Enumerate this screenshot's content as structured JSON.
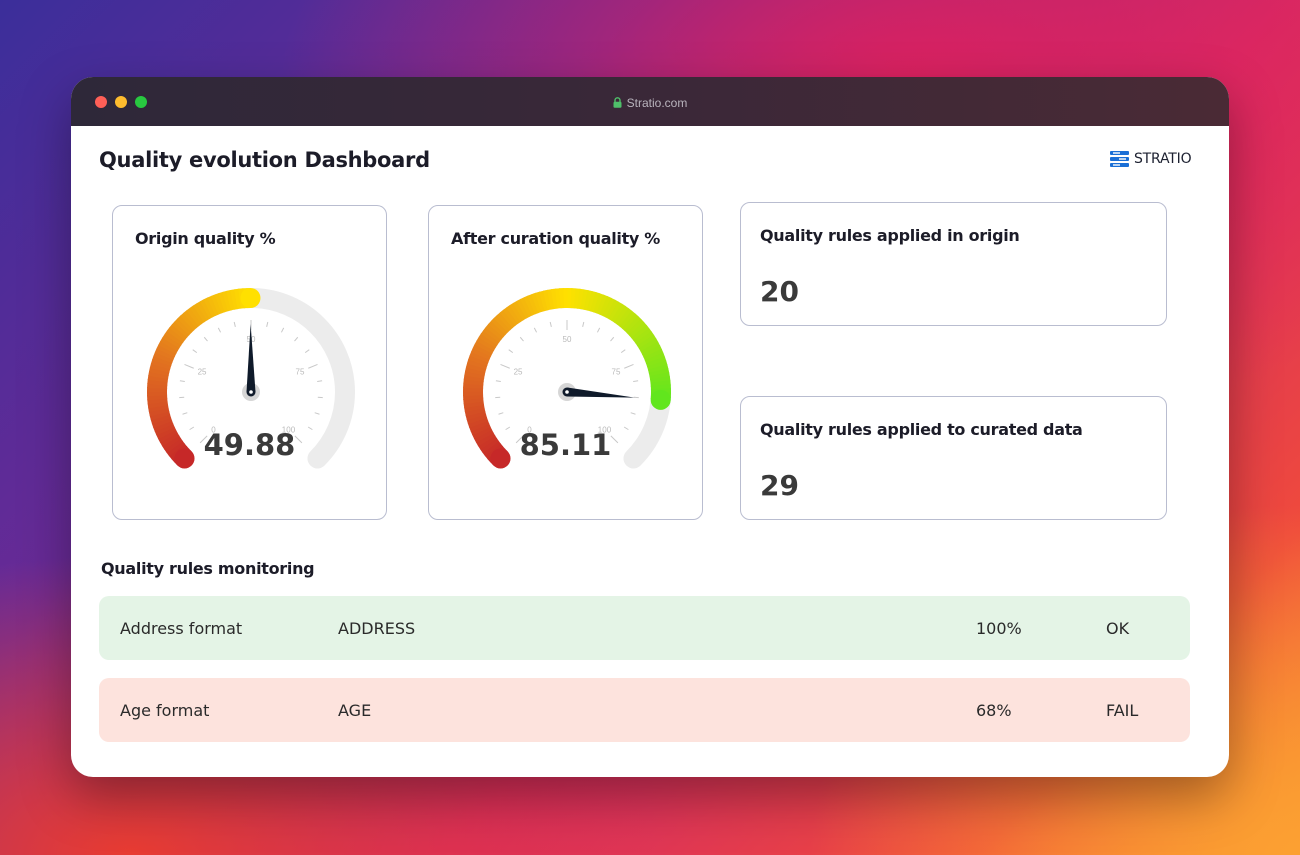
{
  "window": {
    "url": "Stratio.com"
  },
  "header": {
    "title": "Quality evolution Dashboard",
    "brand": "STRATIO",
    "brand_color": "#1a6fd6"
  },
  "gauges": [
    {
      "title": "Origin quality %",
      "value": 49.88,
      "value_label": "49.88",
      "min": 0,
      "max": 100,
      "ticks": [
        "0",
        "25",
        "50",
        "75",
        "100"
      ]
    },
    {
      "title": "After curation quality %",
      "value": 85.11,
      "value_label": "85.11",
      "min": 0,
      "max": 100,
      "ticks": [
        "0",
        "25",
        "50",
        "75",
        "100"
      ]
    }
  ],
  "stats": [
    {
      "title": "Quality rules applied in origin",
      "value": "20"
    },
    {
      "title": "Quality rules applied to curated data",
      "value": "29"
    }
  ],
  "monitoring": {
    "title": "Quality rules monitoring",
    "rows": [
      {
        "rule": "Address format",
        "field": "ADDRESS",
        "percent": "100%",
        "status": "OK",
        "status_color": "#e4f4e6"
      },
      {
        "rule": "Age format",
        "field": "AGE",
        "percent": "68%",
        "status": "FAIL",
        "status_color": "#fde3dd"
      }
    ]
  },
  "colors": {
    "gauge_low": "#c62828",
    "gauge_mid": "#ffe100",
    "gauge_high": "#1ee82a",
    "gauge_track": "#ececec",
    "needle": "#0f1a2a"
  }
}
